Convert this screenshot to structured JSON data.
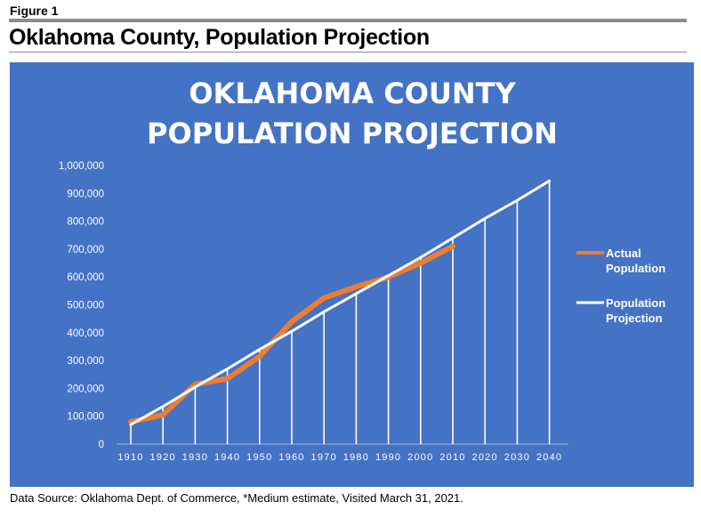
{
  "figure": {
    "label": "Figure 1",
    "title": "Oklahoma County, Population Projection",
    "source": "Data Source: Oklahoma Dept. of Commerce, *Medium estimate, Visited March 31, 2021."
  },
  "colors": {
    "panel_bg": "#4472c4",
    "actual": "#ed7d31",
    "projection": "#ffffff",
    "rule": "#8c8c8c"
  },
  "chart_data": {
    "type": "line",
    "title_lines": [
      "OKLAHOMA COUNTY",
      "POPULATION PROJECTION"
    ],
    "xlabel": "",
    "ylabel": "",
    "ylim": [
      0,
      1000000
    ],
    "yticks": [
      "0",
      "100,000",
      "200,000",
      "300,000",
      "400,000",
      "500,000",
      "600,000",
      "700,000",
      "800,000",
      "900,000",
      "1,000,000"
    ],
    "x": [
      "1910",
      "1920",
      "1930",
      "1940",
      "1950",
      "1960",
      "1970",
      "1980",
      "1990",
      "2000",
      "2010",
      "2020",
      "2030",
      "2040"
    ],
    "grid": false,
    "legend_position": "right",
    "series": [
      {
        "name": "Actual Population",
        "legend_lines": [
          "Actual",
          "Population"
        ],
        "color": "#ed7d31",
        "values": [
          80000,
          105000,
          215000,
          235000,
          315000,
          440000,
          525000,
          565000,
          600000,
          650000,
          710000,
          null,
          null,
          null
        ]
      },
      {
        "name": "Population Projection",
        "legend_lines": [
          "Population",
          "Projection"
        ],
        "color": "#ffffff",
        "values": [
          70000,
          135000,
          205000,
          270000,
          340000,
          405000,
          475000,
          540000,
          605000,
          670000,
          740000,
          810000,
          875000,
          945000
        ]
      }
    ]
  }
}
